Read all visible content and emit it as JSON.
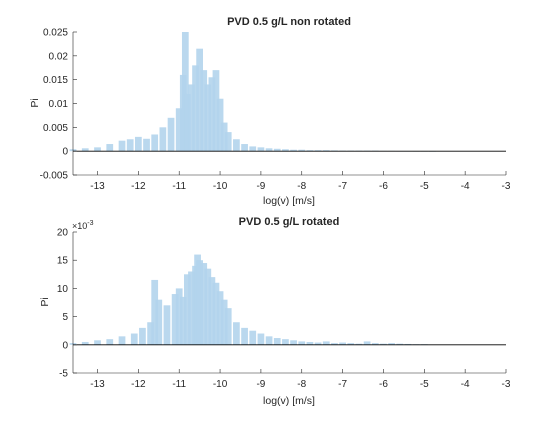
{
  "chart_data": [
    {
      "type": "bar",
      "title": "PVD 0.5 g/L non rotated",
      "xlabel": "log(v) [m/s]",
      "ylabel": "Pi",
      "xlim": [
        -13.6,
        -3
      ],
      "ylim": [
        -0.005,
        0.025
      ],
      "xticks": [
        "-13",
        "-12",
        "-11",
        "-10",
        "-9",
        "-8",
        "-7",
        "-6",
        "-5",
        "-4",
        "-3"
      ],
      "yticks": [
        "-0.005",
        "0",
        "0.005",
        "0.01",
        "0.015",
        "0.02",
        "0.025"
      ],
      "y_multiplier": "",
      "bar_color": "#b3d4ec",
      "zero_line_color": "#000000",
      "series": [
        {
          "x": [
            -13.6,
            -13.3,
            -13.0,
            -12.7,
            -12.4,
            -12.2,
            -12.0,
            -11.8,
            -11.6,
            -11.4,
            -11.2,
            -11.0,
            -10.9,
            -10.85,
            -10.8,
            -10.7,
            -10.6,
            -10.5,
            -10.4,
            -10.3,
            -10.2,
            -10.1,
            -10.0,
            -9.9,
            -9.8,
            -9.6,
            -9.4,
            -9.2,
            -9.0,
            -8.8,
            -8.6,
            -8.4,
            -8.2,
            -8.0,
            -7.8,
            -7.6,
            -7.4,
            -7.2,
            -7.0,
            -6.8,
            -6.6,
            -6.4,
            -6.2,
            -6.0,
            -5.8,
            -5.6,
            -5.4,
            -5.2,
            -5.0,
            -4.8
          ],
          "values": [
            0.0004,
            0.0006,
            0.0008,
            0.0015,
            0.0022,
            0.0025,
            0.003,
            0.0026,
            0.0035,
            0.005,
            0.007,
            0.009,
            0.016,
            0.025,
            0.012,
            0.014,
            0.018,
            0.0215,
            0.017,
            0.014,
            0.0155,
            0.017,
            0.011,
            0.006,
            0.004,
            0.0025,
            0.0015,
            0.001,
            0.0008,
            0.0006,
            0.0005,
            0.0004,
            0.0003,
            0.0003,
            0.0002,
            0.0002,
            0.0002,
            0.00015,
            0.0001,
            0.0001,
            0.0001,
            0.0001,
            0.0001,
            5e-05,
            5e-05,
            3e-05,
            3e-05,
            2e-05,
            2e-05,
            1e-05
          ]
        }
      ]
    },
    {
      "type": "bar",
      "title": "PVD 0.5 g/L rotated",
      "xlabel": "log(v) [m/s]",
      "ylabel": "Pi",
      "xlim": [
        -13.6,
        -3
      ],
      "ylim": [
        -5,
        20
      ],
      "xticks": [
        "-13",
        "-12",
        "-11",
        "-10",
        "-9",
        "-8",
        "-7",
        "-6",
        "-5",
        "-4",
        "-3"
      ],
      "yticks": [
        "-5",
        "0",
        "5",
        "10",
        "15",
        "20"
      ],
      "y_multiplier": "×10",
      "y_multiplier_exp": "-3",
      "bar_color": "#b3d4ec",
      "zero_line_color": "#000000",
      "series": [
        {
          "x": [
            -13.6,
            -13.3,
            -13.0,
            -12.7,
            -12.4,
            -12.1,
            -11.9,
            -11.7,
            -11.6,
            -11.5,
            -11.3,
            -11.1,
            -11.0,
            -10.9,
            -10.8,
            -10.7,
            -10.6,
            -10.55,
            -10.5,
            -10.4,
            -10.3,
            -10.2,
            -10.1,
            -10.0,
            -9.9,
            -9.8,
            -9.6,
            -9.4,
            -9.2,
            -9.0,
            -8.8,
            -8.6,
            -8.4,
            -8.2,
            -8.0,
            -7.8,
            -7.6,
            -7.4,
            -7.2,
            -7.0,
            -6.8,
            -6.6,
            -6.4,
            -6.2,
            -6.0,
            -5.8,
            -5.6,
            -5.4,
            -5.2,
            -5.0
          ],
          "values": [
            0.3,
            0.5,
            0.8,
            1.0,
            1.5,
            2.0,
            3.0,
            4.0,
            11.5,
            8.0,
            7.0,
            9.0,
            10.0,
            8.5,
            12.5,
            13.0,
            14.0,
            16.0,
            15.0,
            14.5,
            13.5,
            12.0,
            11.0,
            9.5,
            8.0,
            6.5,
            4.0,
            3.0,
            2.5,
            2.0,
            1.5,
            1.2,
            1.0,
            0.8,
            0.6,
            0.5,
            0.4,
            0.6,
            0.3,
            0.4,
            0.3,
            0.2,
            0.6,
            0.3,
            0.2,
            0.3,
            0.2,
            0.15,
            0.1,
            0.1
          ]
        }
      ]
    }
  ]
}
